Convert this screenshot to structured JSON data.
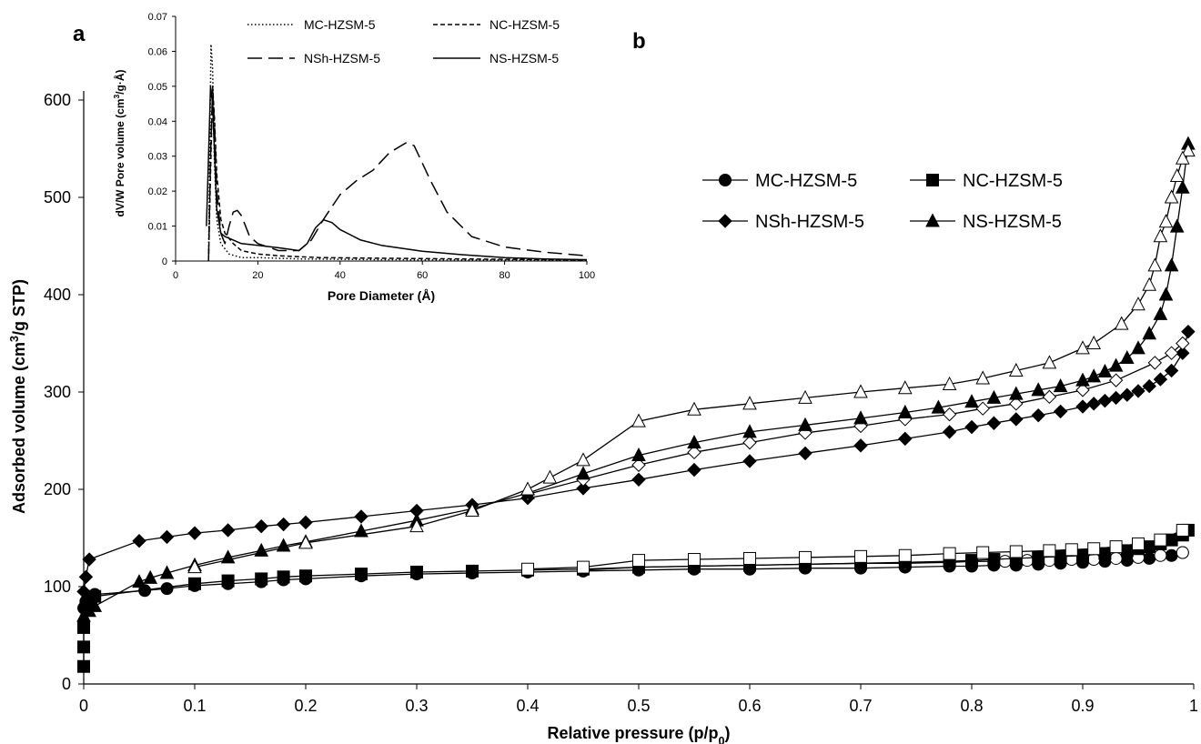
{
  "panels": {
    "a": "a",
    "b": "b"
  },
  "chart_data": [
    {
      "panel": "b",
      "type": "scatter",
      "xlabel": "Relative pressure (p/p0)",
      "ylabel": "Adsorbed volume (cm3/g STP)",
      "xlim": [
        0,
        1
      ],
      "ylim": [
        0,
        600
      ],
      "xticks": [
        "0",
        "0.1",
        "0.2",
        "0.3",
        "0.4",
        "0.5",
        "0.6",
        "0.7",
        "0.8",
        "0.9",
        "1"
      ],
      "yticks": [
        "0",
        "100",
        "200",
        "300",
        "400",
        "500",
        "600"
      ],
      "grid": false,
      "legend_position": "upper-right",
      "series": [
        {
          "name": "MC-HZSM-5",
          "marker": "circle",
          "branch": "adsorption",
          "x": [
            0.0,
            0.002,
            0.005,
            0.01,
            0.055,
            0.075,
            0.1,
            0.13,
            0.16,
            0.18,
            0.2,
            0.25,
            0.3,
            0.35,
            0.4,
            0.45,
            0.5,
            0.55,
            0.6,
            0.65,
            0.7,
            0.74,
            0.78,
            0.8,
            0.82,
            0.84,
            0.86,
            0.88,
            0.9,
            0.92,
            0.94,
            0.96,
            0.98,
            0.99
          ],
          "y": [
            78,
            85,
            88,
            92,
            96,
            98,
            101,
            103,
            105,
            107,
            108,
            111,
            113,
            114,
            115,
            116,
            117,
            118,
            118,
            119,
            119,
            120,
            121,
            121,
            122,
            122,
            123,
            124,
            125,
            126,
            127,
            129,
            132,
            135
          ]
        },
        {
          "name": "MC-HZSM-5",
          "marker": "circle",
          "branch": "desorption",
          "x": [
            0.99,
            0.97,
            0.95,
            0.93,
            0.91,
            0.89,
            0.87,
            0.85,
            0.83,
            0.8,
            0.78,
            0.74,
            0.7,
            0.65,
            0.6,
            0.55,
            0.5,
            0.45
          ],
          "y": [
            135,
            132,
            130,
            129,
            128,
            128,
            127,
            127,
            126,
            126,
            125,
            124,
            124,
            123,
            122,
            121,
            120,
            117
          ]
        },
        {
          "name": "NC-HZSM-5",
          "marker": "square",
          "branch": "adsorption",
          "x": [
            0.0,
            0.0,
            0.0,
            0.002,
            0.005,
            0.01,
            0.1,
            0.13,
            0.16,
            0.18,
            0.2,
            0.25,
            0.3,
            0.35,
            0.4,
            0.45,
            0.5,
            0.55,
            0.6,
            0.65,
            0.7,
            0.74,
            0.78,
            0.8,
            0.82,
            0.84,
            0.86,
            0.88,
            0.9,
            0.92,
            0.94,
            0.95,
            0.96,
            0.97,
            0.98,
            0.99,
            0.995
          ],
          "y": [
            18,
            38,
            58,
            80,
            86,
            90,
            103,
            106,
            108,
            110,
            111,
            113,
            115,
            116,
            117,
            118,
            120,
            121,
            122,
            123,
            124,
            125,
            126,
            127,
            128,
            129,
            130,
            131,
            132,
            134,
            137,
            139,
            141,
            144,
            148,
            153,
            158
          ]
        },
        {
          "name": "NC-HZSM-5",
          "marker": "square",
          "branch": "desorption",
          "x": [
            0.99,
            0.97,
            0.95,
            0.93,
            0.91,
            0.89,
            0.87,
            0.84,
            0.81,
            0.78,
            0.74,
            0.7,
            0.65,
            0.6,
            0.55,
            0.5,
            0.45,
            0.4
          ],
          "y": [
            158,
            148,
            144,
            141,
            139,
            138,
            137,
            136,
            135,
            134,
            132,
            131,
            130,
            129,
            128,
            127,
            120,
            118
          ]
        },
        {
          "name": "NSh-HZSM-5",
          "marker": "diamond",
          "branch": "adsorption",
          "x": [
            0.0,
            0.002,
            0.005,
            0.05,
            0.075,
            0.1,
            0.13,
            0.16,
            0.18,
            0.2,
            0.25,
            0.3,
            0.35,
            0.4,
            0.45,
            0.5,
            0.55,
            0.6,
            0.65,
            0.7,
            0.74,
            0.78,
            0.8,
            0.82,
            0.84,
            0.86,
            0.88,
            0.9,
            0.91,
            0.92,
            0.93,
            0.94,
            0.95,
            0.96,
            0.97,
            0.98,
            0.99,
            0.995
          ],
          "y": [
            95,
            110,
            128,
            147,
            151,
            155,
            158,
            162,
            164,
            166,
            172,
            178,
            184,
            191,
            201,
            210,
            220,
            229,
            237,
            245,
            252,
            259,
            264,
            268,
            272,
            276,
            280,
            285,
            288,
            291,
            294,
            297,
            301,
            306,
            313,
            322,
            340,
            362
          ]
        },
        {
          "name": "NSh-HZSM-5",
          "marker": "diamond",
          "branch": "desorption",
          "x": [
            0.99,
            0.98,
            0.965,
            0.93,
            0.9,
            0.87,
            0.84,
            0.81,
            0.78,
            0.74,
            0.7,
            0.65,
            0.6,
            0.55,
            0.5,
            0.45,
            0.4
          ],
          "y": [
            350,
            340,
            330,
            312,
            302,
            295,
            288,
            283,
            277,
            272,
            265,
            258,
            248,
            238,
            225,
            210,
            195
          ]
        },
        {
          "name": "NS-HZSM-5",
          "marker": "triangle",
          "branch": "adsorption",
          "x": [
            0.0,
            0.005,
            0.01,
            0.05,
            0.06,
            0.075,
            0.1,
            0.13,
            0.16,
            0.18,
            0.2,
            0.25,
            0.3,
            0.35,
            0.4,
            0.45,
            0.5,
            0.55,
            0.6,
            0.65,
            0.7,
            0.74,
            0.77,
            0.8,
            0.82,
            0.84,
            0.86,
            0.88,
            0.9,
            0.91,
            0.92,
            0.93,
            0.94,
            0.95,
            0.96,
            0.97,
            0.975,
            0.98,
            0.985,
            0.99,
            0.995
          ],
          "y": [
            70,
            75,
            80,
            105,
            109,
            114,
            122,
            130,
            137,
            142,
            146,
            157,
            168,
            180,
            196,
            216,
            235,
            248,
            259,
            266,
            273,
            279,
            284,
            290,
            294,
            298,
            302,
            306,
            312,
            316,
            321,
            327,
            335,
            345,
            360,
            380,
            400,
            430,
            470,
            510,
            555
          ]
        },
        {
          "name": "NS-HZSM-5",
          "marker": "triangle",
          "branch": "desorption",
          "x": [
            0.995,
            0.99,
            0.985,
            0.98,
            0.975,
            0.97,
            0.965,
            0.96,
            0.95,
            0.935,
            0.91,
            0.9,
            0.87,
            0.84,
            0.81,
            0.78,
            0.74,
            0.7,
            0.65,
            0.6,
            0.55,
            0.5,
            0.45,
            0.42,
            0.4,
            0.35,
            0.3,
            0.2,
            0.1
          ],
          "y": [
            548,
            540,
            522,
            500,
            475,
            460,
            430,
            410,
            390,
            370,
            350,
            345,
            330,
            322,
            314,
            308,
            304,
            300,
            294,
            288,
            282,
            270,
            230,
            212,
            200,
            178,
            162,
            145,
            120
          ]
        }
      ]
    },
    {
      "panel": "a",
      "type": "line",
      "title": "",
      "xlabel": "Pore Diameter (Å)",
      "ylabel": "dV/W Pore volume (cm3/g·Å)",
      "xlim": [
        0,
        100
      ],
      "ylim": [
        0,
        0.07
      ],
      "xticks": [
        "0",
        "20",
        "40",
        "60",
        "80",
        "100"
      ],
      "yticks": [
        "0",
        "0.01",
        "0.02",
        "0.03",
        "0.04",
        "0.05",
        "0.06",
        "0.07"
      ],
      "grid": false,
      "legend_position": "top",
      "series": [
        {
          "name": "MC-HZSM-5",
          "style": "dotted",
          "x": [
            8,
            8.3,
            8.6,
            9,
            9.4,
            10,
            11,
            13,
            16,
            20,
            30,
            50,
            80,
            100
          ],
          "y": [
            0,
            0.03,
            0.062,
            0.055,
            0.03,
            0.012,
            0.005,
            0.002,
            0.001,
            0.001,
            0.0006,
            0.0004,
            0.0003,
            0.0002
          ]
        },
        {
          "name": "NC-HZSM-5",
          "style": "dashed",
          "x": [
            8,
            8.5,
            9,
            9.5,
            10,
            11,
            12,
            14,
            16,
            20,
            25,
            35,
            50,
            80,
            100
          ],
          "y": [
            0,
            0.025,
            0.05,
            0.04,
            0.025,
            0.012,
            0.008,
            0.005,
            0.003,
            0.002,
            0.0015,
            0.001,
            0.0008,
            0.0005,
            0.0003
          ]
        },
        {
          "name": "NSh-HZSM-5",
          "style": "long-dash",
          "x": [
            8,
            8.5,
            9,
            9.5,
            10,
            11,
            12,
            13,
            14,
            15,
            16,
            18,
            20,
            25,
            30,
            33,
            36,
            40,
            44,
            48,
            52,
            56,
            58,
            62,
            66,
            72,
            80,
            90,
            100
          ],
          "y": [
            0,
            0.03,
            0.049,
            0.038,
            0.02,
            0.008,
            0.005,
            0.01,
            0.014,
            0.0145,
            0.013,
            0.007,
            0.005,
            0.003,
            0.003,
            0.006,
            0.012,
            0.019,
            0.023,
            0.026,
            0.031,
            0.0338,
            0.033,
            0.023,
            0.014,
            0.007,
            0.004,
            0.0025,
            0.0015
          ]
        },
        {
          "name": "NS-HZSM-5",
          "style": "solid",
          "x": [
            7.5,
            8,
            8.5,
            9,
            9.5,
            10,
            11,
            12,
            14,
            16,
            20,
            25,
            30,
            32,
            34,
            36,
            38,
            40,
            45,
            50,
            60,
            70,
            80,
            90,
            100
          ],
          "y": [
            0.01,
            0.03,
            0.05,
            0.045,
            0.03,
            0.015,
            0.008,
            0.007,
            0.006,
            0.005,
            0.0045,
            0.0038,
            0.003,
            0.005,
            0.0095,
            0.0118,
            0.011,
            0.009,
            0.006,
            0.0045,
            0.0028,
            0.0018,
            0.001,
            0.0006,
            0.0004
          ]
        }
      ]
    }
  ]
}
